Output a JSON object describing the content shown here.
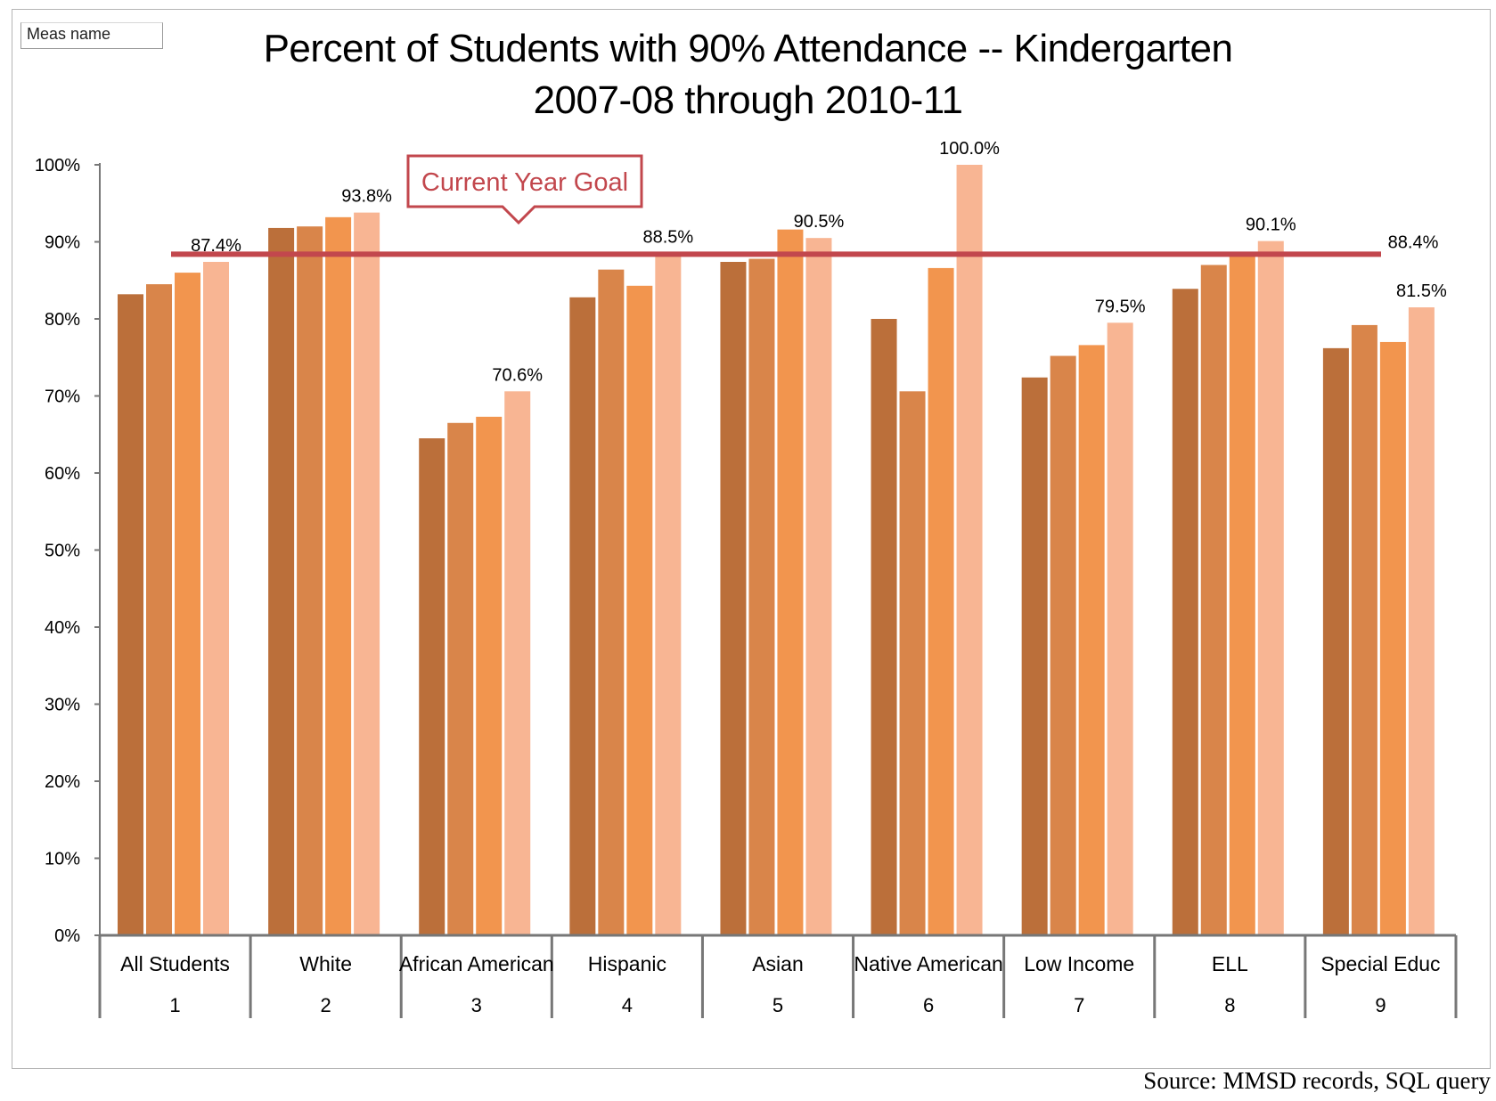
{
  "header": {
    "meas_name": "Meas name",
    "title_line1": "Percent of Students with 90% Attendance -- Kindergarten",
    "title_line2": "2007-08 through 2010-11"
  },
  "source": "Source:  MMSD records, SQL query",
  "colors": {
    "series": [
      "#bb6f3a",
      "#d9854a",
      "#f2954e",
      "#f8b593"
    ],
    "goal": "#c2474d",
    "axis": "#777777"
  },
  "chart_data": {
    "type": "bar",
    "title": "Percent of Students with 90% Attendance -- Kindergarten 2007-08 through 2010-11",
    "ylim": [
      0,
      100
    ],
    "y_ticks": [
      "0%",
      "10%",
      "20%",
      "30%",
      "40%",
      "50%",
      "60%",
      "70%",
      "80%",
      "90%",
      "100%"
    ],
    "categories": [
      "All Students",
      "White",
      "African American",
      "Hispanic",
      "Asian",
      "Native American",
      "Low Income",
      "ELL",
      "Special Educ"
    ],
    "category_numbers": [
      "1",
      "2",
      "3",
      "4",
      "5",
      "6",
      "7",
      "8",
      "9"
    ],
    "series": [
      {
        "values": [
          83.2,
          91.8,
          64.5,
          82.8,
          87.4,
          80.0,
          72.4,
          83.9,
          76.2
        ]
      },
      {
        "values": [
          84.5,
          92.0,
          66.5,
          86.4,
          87.8,
          70.6,
          75.2,
          87.0,
          79.2
        ]
      },
      {
        "values": [
          86.0,
          93.2,
          67.3,
          84.3,
          91.6,
          86.6,
          76.6,
          88.5,
          77.0
        ]
      },
      {
        "values": [
          87.4,
          93.8,
          70.6,
          88.5,
          90.5,
          100.0,
          79.5,
          90.1,
          81.5
        ]
      }
    ],
    "data_labels": [
      "87.4%",
      "93.8%",
      "70.6%",
      "88.5%",
      "90.5%",
      "100.0%",
      "79.5%",
      "90.1%",
      "88.4%",
      "81.5%"
    ],
    "goal": {
      "value": 88.4,
      "label": "88.4%",
      "annotation": "Current Year Goal"
    },
    "legend": "none",
    "grid": false
  }
}
